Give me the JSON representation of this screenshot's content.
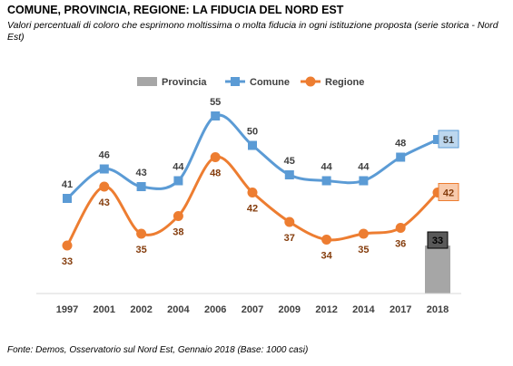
{
  "header": {
    "title": "COMUNE, PROVINCIA, REGIONE: LA FIDUCIA DEL NORD EST",
    "subtitle": "Valori percentuali di coloro che esprimono moltissima o molta fiducia in ogni istituzione proposta (serie storica - Nord Est)"
  },
  "footer": {
    "source": "Fonte: Demos, Osservatorio sul Nord Est, Gennaio  2018 (Base: 1000 casi)"
  },
  "chart_data": {
    "type": "line",
    "categories": [
      "1997",
      "2001",
      "2002",
      "2004",
      "2006",
      "2007",
      "2009",
      "2012",
      "2014",
      "2017",
      "2018"
    ],
    "series": [
      {
        "name": "Provincia",
        "kind": "bar",
        "color": "#a6a6a6",
        "values": [
          null,
          null,
          null,
          null,
          null,
          null,
          null,
          null,
          null,
          null,
          33
        ]
      },
      {
        "name": "Comune",
        "kind": "line",
        "color": "#5b9bd5",
        "values": [
          41,
          46,
          43,
          44,
          55,
          50,
          45,
          44,
          44,
          48,
          51
        ]
      },
      {
        "name": "Regione",
        "kind": "line",
        "color": "#ed7d31",
        "values": [
          33,
          43,
          35,
          38,
          48,
          42,
          37,
          34,
          35,
          36,
          42
        ]
      }
    ],
    "label_colors": {
      "Comune": "#404040",
      "Regione": "#843c0c",
      "Provincia": "#000000"
    },
    "highlight_label_fills": {
      "Comune": "#bdd7ee",
      "Regione": "#f8cbad",
      "Provincia": "#595959"
    },
    "legend_position": "top",
    "grid": false
  }
}
